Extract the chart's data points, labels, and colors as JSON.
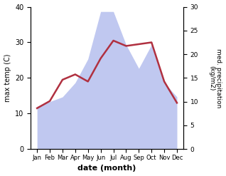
{
  "months": [
    "Jan",
    "Feb",
    "Mar",
    "Apr",
    "May",
    "Jun",
    "Jul",
    "Aug",
    "Sep",
    "Oct",
    "Nov",
    "Dec"
  ],
  "temperature": [
    11.5,
    13.5,
    19.5,
    21.0,
    19.0,
    25.5,
    30.5,
    29.0,
    29.5,
    30.0,
    19.0,
    13.0
  ],
  "precipitation": [
    9,
    10,
    11,
    14,
    19,
    29,
    29,
    22,
    17,
    22,
    14,
    11
  ],
  "temp_color": "#b03040",
  "precip_fill_color": "#c0c8f0",
  "left_ylim": [
    0,
    40
  ],
  "right_ylim": [
    0,
    30
  ],
  "left_ylabel": "max temp (C)",
  "right_ylabel": "med. precipitation\n(kg/m2)",
  "xlabel": "date (month)",
  "left_yticks": [
    0,
    10,
    20,
    30,
    40
  ],
  "right_yticks": [
    0,
    5,
    10,
    15,
    20,
    25,
    30
  ],
  "fig_width": 3.18,
  "fig_height": 2.47,
  "dpi": 100
}
